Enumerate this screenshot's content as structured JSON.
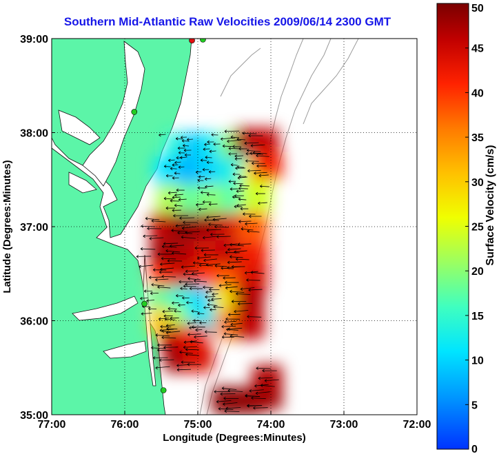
{
  "chart_data": {
    "type": "heatmap",
    "title": "Southern Mid-Atlantic Raw Velocities 2009/06/14 2300 GMT",
    "xlabel": "Longitude (Degrees:Minutes)",
    "ylabel": "Latitude (Degrees:Minutes)",
    "x_ticks": [
      {
        "value": -77,
        "label": "77:00"
      },
      {
        "value": -76,
        "label": "76:00"
      },
      {
        "value": -75,
        "label": "75:00"
      },
      {
        "value": -74,
        "label": "74:00"
      },
      {
        "value": -73,
        "label": "73:00"
      },
      {
        "value": -72,
        "label": "72:00"
      }
    ],
    "y_ticks": [
      {
        "value": 35,
        "label": "35:00"
      },
      {
        "value": 36,
        "label": "36:00"
      },
      {
        "value": 37,
        "label": "37:00"
      },
      {
        "value": 38,
        "label": "38:00"
      },
      {
        "value": 39,
        "label": "39:00"
      }
    ],
    "xlim": [
      -77,
      -72
    ],
    "ylim": [
      35,
      39
    ],
    "grid": "dotted",
    "colorbar": {
      "label": "Surface Velocity (cm/s)",
      "min": 0,
      "max": 50,
      "ticks": [
        0,
        5,
        10,
        15,
        20,
        25,
        30,
        35,
        40,
        45,
        50
      ],
      "colormap": "jet"
    },
    "land_color": "#5cf5a8",
    "stations": [
      {
        "lon": -75.08,
        "lat": 38.98,
        "color": "#e01010"
      },
      {
        "lon": -74.93,
        "lat": 38.99,
        "color": "#22cc22"
      },
      {
        "lon": -75.87,
        "lat": 38.22,
        "color": "#22cc22"
      },
      {
        "lon": -75.73,
        "lat": 36.18,
        "color": "#22cc22"
      },
      {
        "lon": -75.47,
        "lat": 35.26,
        "color": "#22cc22"
      }
    ],
    "velocity_field": [
      {
        "lon": -75.25,
        "lat": 37.85,
        "v": 14
      },
      {
        "lon": -75.0,
        "lat": 37.85,
        "v": 9
      },
      {
        "lon": -74.75,
        "lat": 37.85,
        "v": 12
      },
      {
        "lon": -74.5,
        "lat": 37.85,
        "v": 20
      },
      {
        "lon": -74.3,
        "lat": 37.9,
        "v": 48
      },
      {
        "lon": -74.1,
        "lat": 37.9,
        "v": 46
      },
      {
        "lon": -75.4,
        "lat": 37.6,
        "v": 11
      },
      {
        "lon": -75.1,
        "lat": 37.6,
        "v": 8
      },
      {
        "lon": -74.8,
        "lat": 37.6,
        "v": 10
      },
      {
        "lon": -74.5,
        "lat": 37.6,
        "v": 13
      },
      {
        "lon": -74.2,
        "lat": 37.55,
        "v": 26
      },
      {
        "lon": -74.05,
        "lat": 37.65,
        "v": 42
      },
      {
        "lon": -75.35,
        "lat": 37.3,
        "v": 22
      },
      {
        "lon": -75.05,
        "lat": 37.3,
        "v": 18
      },
      {
        "lon": -74.75,
        "lat": 37.3,
        "v": 20
      },
      {
        "lon": -74.45,
        "lat": 37.3,
        "v": 17
      },
      {
        "lon": -74.2,
        "lat": 37.3,
        "v": 24
      },
      {
        "lon": -75.45,
        "lat": 37.0,
        "v": 46
      },
      {
        "lon": -75.15,
        "lat": 37.0,
        "v": 49
      },
      {
        "lon": -74.85,
        "lat": 37.0,
        "v": 48
      },
      {
        "lon": -74.55,
        "lat": 37.0,
        "v": 45
      },
      {
        "lon": -74.25,
        "lat": 37.0,
        "v": 38
      },
      {
        "lon": -75.45,
        "lat": 36.7,
        "v": 48
      },
      {
        "lon": -75.15,
        "lat": 36.7,
        "v": 47
      },
      {
        "lon": -74.85,
        "lat": 36.7,
        "v": 44
      },
      {
        "lon": -74.55,
        "lat": 36.7,
        "v": 46
      },
      {
        "lon": -74.25,
        "lat": 36.7,
        "v": 42
      },
      {
        "lon": -75.45,
        "lat": 36.45,
        "v": 41
      },
      {
        "lon": -75.15,
        "lat": 36.45,
        "v": 45
      },
      {
        "lon": -74.85,
        "lat": 36.45,
        "v": 40
      },
      {
        "lon": -74.55,
        "lat": 36.45,
        "v": 38
      },
      {
        "lon": -74.25,
        "lat": 36.45,
        "v": 44
      },
      {
        "lon": -75.5,
        "lat": 36.22,
        "v": 18
      },
      {
        "lon": -75.2,
        "lat": 36.22,
        "v": 14
      },
      {
        "lon": -74.9,
        "lat": 36.22,
        "v": 10
      },
      {
        "lon": -74.6,
        "lat": 36.22,
        "v": 28
      },
      {
        "lon": -74.3,
        "lat": 36.22,
        "v": 47
      },
      {
        "lon": -75.45,
        "lat": 36.0,
        "v": 30
      },
      {
        "lon": -75.2,
        "lat": 36.0,
        "v": 22
      },
      {
        "lon": -74.95,
        "lat": 36.0,
        "v": 12
      },
      {
        "lon": -74.55,
        "lat": 35.95,
        "v": 36
      },
      {
        "lon": -74.3,
        "lat": 35.95,
        "v": 46
      },
      {
        "lon": -75.3,
        "lat": 35.8,
        "v": 46
      },
      {
        "lon": -75.05,
        "lat": 35.8,
        "v": 42
      },
      {
        "lon": -75.25,
        "lat": 35.6,
        "v": 48
      },
      {
        "lon": -75.0,
        "lat": 35.6,
        "v": 44
      },
      {
        "lon": -74.6,
        "lat": 35.15,
        "v": 49
      },
      {
        "lon": -74.3,
        "lat": 35.15,
        "v": 49
      },
      {
        "lon": -74.05,
        "lat": 35.2,
        "v": 48
      },
      {
        "lon": -74.05,
        "lat": 35.38,
        "v": 47
      }
    ]
  }
}
